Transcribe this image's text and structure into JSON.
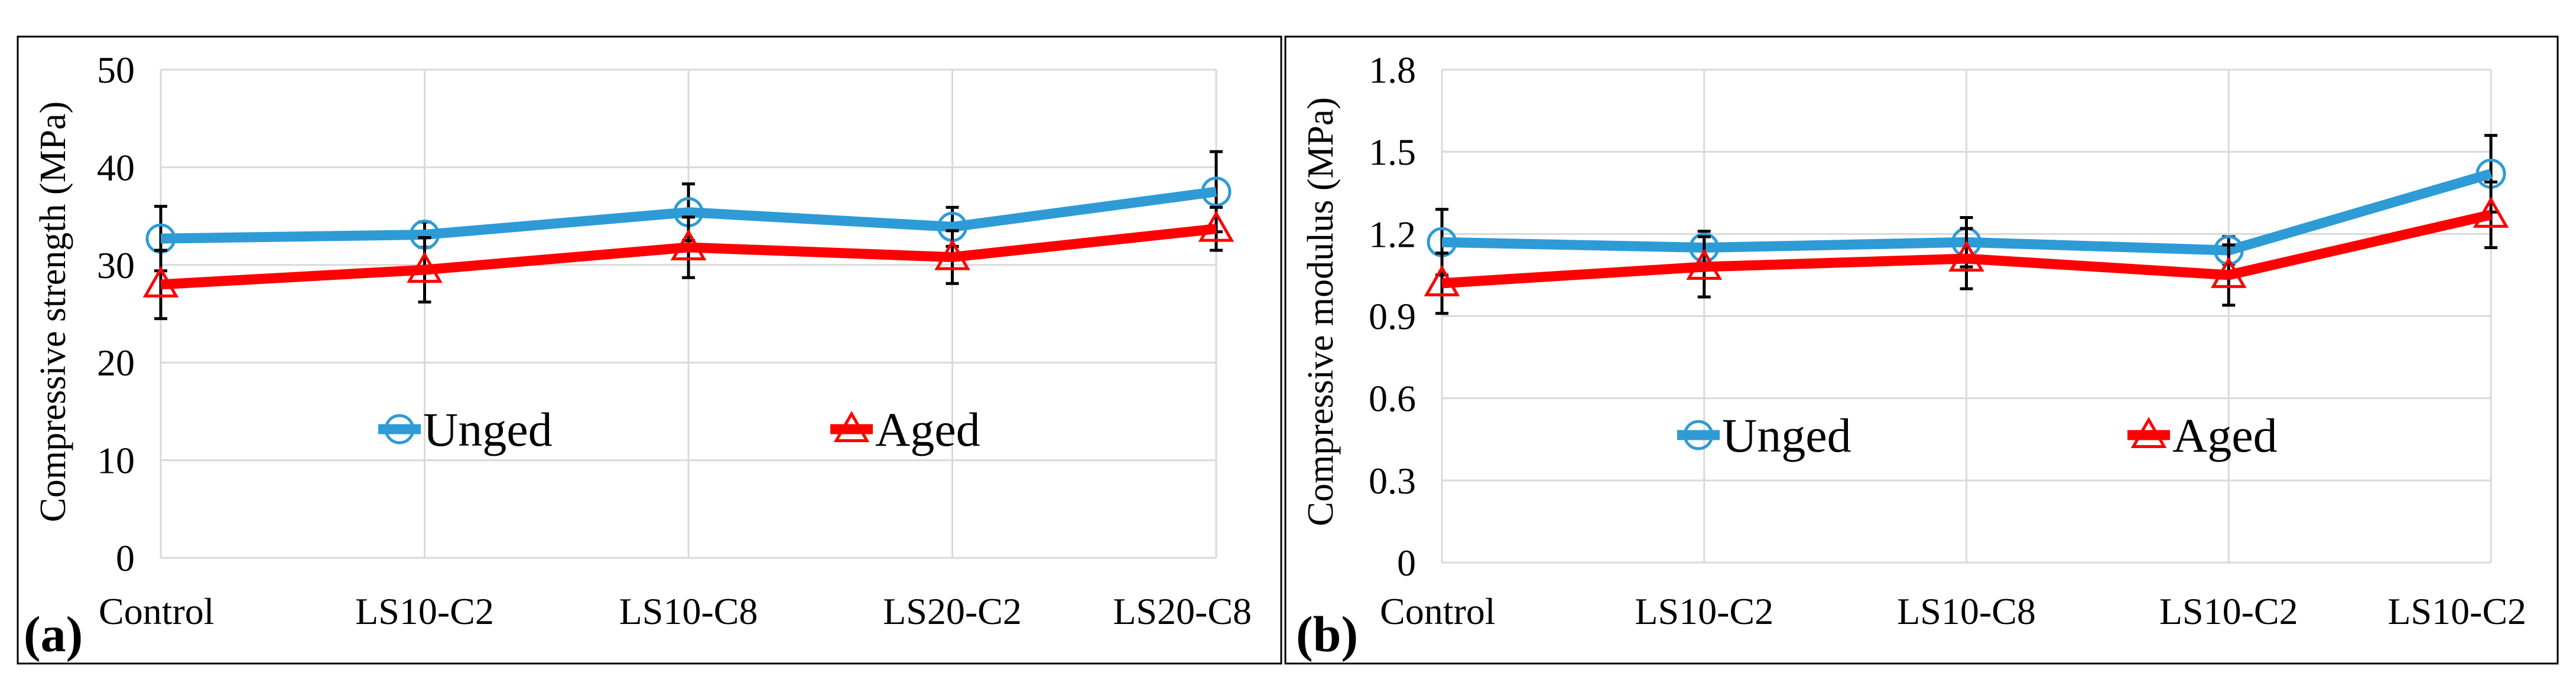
{
  "chart_data": [
    {
      "type": "line",
      "panel_label": "(a)",
      "title": "",
      "xlabel": "",
      "ylabel": "Compressive strength (MPa)",
      "categories": [
        "Control",
        "LS10-C2",
        "LS10-C8",
        "LS20-C2",
        "LS20-C8"
      ],
      "ylim": [
        0,
        50
      ],
      "yticks": [
        0,
        10,
        20,
        30,
        40,
        50
      ],
      "grid": true,
      "legend_position": "center",
      "series": [
        {
          "name": "Unged",
          "color": "#2E9BD6",
          "marker": "circle",
          "values": [
            32.7,
            33.1,
            35.4,
            33.9,
            37.5
          ],
          "errors": [
            3.3,
            1.3,
            2.9,
            2.0,
            4.1
          ]
        },
        {
          "name": "Aged",
          "color": "#FF0000",
          "marker": "triangle",
          "values": [
            28.0,
            29.5,
            31.8,
            30.8,
            33.7
          ],
          "errors": [
            3.5,
            3.3,
            3.1,
            2.7,
            2.2
          ]
        }
      ]
    },
    {
      "type": "line",
      "panel_label": "(b)",
      "title": "",
      "xlabel": "",
      "ylabel": "Compressive modulus (MPa)",
      "categories": [
        "Control",
        "LS10-C2",
        "LS10-C8",
        "LS10-C2",
        "LS10-C2"
      ],
      "ylim": [
        0,
        1.8
      ],
      "yticks": [
        "0",
        "0.3",
        "0.6",
        "0.9",
        "1.2",
        "1.5",
        "1.8"
      ],
      "grid": true,
      "legend_position": "center",
      "series": [
        {
          "name": "Unged",
          "color": "#2E9BD6",
          "marker": "circle",
          "values": [
            1.17,
            1.15,
            1.17,
            1.14,
            1.42
          ],
          "errors": [
            0.12,
            0.06,
            0.09,
            0.05,
            0.14
          ]
        },
        {
          "name": "Aged",
          "color": "#FF0000",
          "marker": "triangle",
          "values": [
            1.02,
            1.08,
            1.11,
            1.05,
            1.27
          ],
          "errors": [
            0.11,
            0.11,
            0.11,
            0.11,
            0.12
          ]
        }
      ]
    }
  ]
}
